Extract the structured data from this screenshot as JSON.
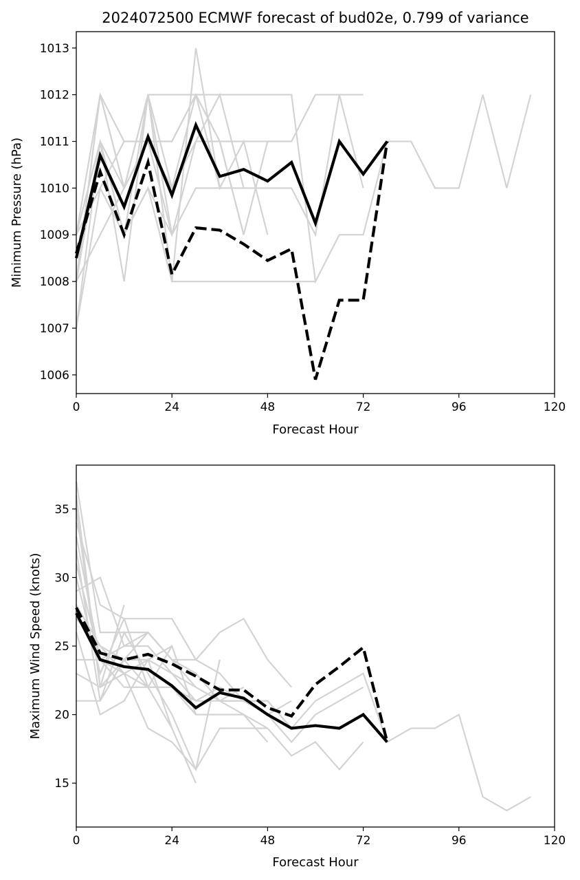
{
  "chart_data": [
    {
      "type": "line",
      "title": "2024072500 ECMWF forecast of bud02e, 0.799 of variance",
      "xlabel": "Forecast Hour",
      "ylabel": "Minimum Pressure (hPa)",
      "xlim": [
        0,
        120
      ],
      "ylim": [
        1005.6,
        1013.35
      ],
      "xticks": [
        0,
        24,
        48,
        72,
        96,
        120
      ],
      "yticks": [
        1006,
        1007,
        1008,
        1009,
        1010,
        1011,
        1012,
        1013
      ],
      "grid": false,
      "colors": {
        "ensemble": "#d3d3d3",
        "main": "#000000"
      },
      "ensemble": [
        {
          "x": [
            0,
            6,
            12,
            18,
            24
          ],
          "y": [
            1008,
            1012,
            1010,
            1012,
            1009
          ]
        },
        {
          "x": [
            0,
            6,
            12,
            18,
            24,
            30,
            36
          ],
          "y": [
            1009,
            1011,
            1008,
            1012,
            1008,
            1013,
            1010
          ]
        },
        {
          "x": [
            0,
            6,
            12,
            18,
            24,
            30,
            36,
            42,
            48,
            54
          ],
          "y": [
            1007,
            1010,
            1011,
            1011,
            1011,
            1012,
            1011,
            1011,
            1011,
            1011
          ]
        },
        {
          "x": [
            0,
            6,
            12,
            18,
            24,
            30,
            36,
            42,
            48
          ],
          "y": [
            1008,
            1011,
            1009,
            1012,
            1010,
            1012,
            1010,
            1011,
            1009
          ]
        },
        {
          "x": [
            0,
            6,
            12,
            18,
            24,
            30,
            36,
            42
          ],
          "y": [
            1009,
            1012,
            1011,
            1011,
            1010,
            1011,
            1012,
            1010
          ]
        },
        {
          "x": [
            0,
            6,
            12,
            18,
            24,
            30,
            36,
            42,
            48,
            54,
            60
          ],
          "y": [
            1009,
            1010,
            1009,
            1010,
            1008,
            1008,
            1008,
            1008,
            1008,
            1008,
            1008
          ]
        },
        {
          "x": [
            0,
            6,
            12,
            18,
            24,
            30,
            36,
            42,
            48,
            54,
            60,
            66,
            72
          ],
          "y": [
            1008,
            1009,
            1010,
            1011,
            1009,
            1010,
            1010,
            1010,
            1010,
            1010,
            1009,
            1012,
            1010
          ]
        },
        {
          "x": [
            0,
            6,
            12,
            18,
            24,
            30,
            36,
            42
          ],
          "y": [
            1007,
            1011,
            1009,
            1010,
            1009,
            1011,
            1011,
            1009
          ]
        },
        {
          "x": [
            0,
            6,
            12,
            18,
            24,
            30,
            36,
            42,
            48,
            54,
            60,
            66,
            72,
            78,
            84,
            90,
            96,
            102,
            108,
            114
          ],
          "y": [
            1008,
            1012,
            1010,
            1012,
            1012,
            1012,
            1012,
            1012,
            1012,
            1012,
            1008,
            1009,
            1009,
            1011,
            1011,
            1010,
            1010,
            1012,
            1010,
            1012
          ]
        },
        {
          "x": [
            0,
            6,
            12,
            18,
            24,
            30,
            36,
            42,
            48,
            54,
            60,
            66,
            72
          ],
          "y": [
            1008,
            1011,
            1010,
            1011,
            1011,
            1012,
            1011,
            1009,
            1011,
            1011,
            1012,
            1012,
            1012
          ]
        }
      ],
      "series": [
        {
          "style": "solid",
          "x": [
            0,
            6,
            12,
            18,
            24,
            30,
            36,
            42,
            48,
            54,
            60,
            66,
            72,
            78
          ],
          "y": [
            1008.5,
            1010.7,
            1009.6,
            1011.1,
            1009.85,
            1011.35,
            1010.25,
            1010.4,
            1010.15,
            1010.55,
            1009.25,
            1011.0,
            1010.3,
            1011.0
          ]
        },
        {
          "style": "dashed",
          "x": [
            0,
            6,
            12,
            18,
            24,
            30,
            36,
            42,
            48,
            54,
            60,
            66,
            72,
            78
          ],
          "y": [
            1008.6,
            1010.35,
            1009.0,
            1010.55,
            1008.15,
            1009.15,
            1009.1,
            1008.8,
            1008.45,
            1008.7,
            1005.9,
            1007.6,
            1007.6,
            1011.0
          ]
        }
      ]
    },
    {
      "type": "line",
      "title": "",
      "xlabel": "Forecast Hour",
      "ylabel": "Maximum Wind Speed (knots)",
      "xlim": [
        0,
        120
      ],
      "ylim": [
        11.8,
        38.2
      ],
      "xticks": [
        0,
        24,
        48,
        72,
        96,
        120
      ],
      "yticks": [
        15,
        20,
        25,
        30,
        35
      ],
      "grid": false,
      "colors": {
        "ensemble": "#d3d3d3",
        "main": "#000000"
      },
      "ensemble": [
        {
          "x": [
            0,
            6,
            12,
            18,
            24,
            30,
            36,
            42,
            48,
            54
          ],
          "y": [
            37,
            26,
            26,
            26,
            24,
            24,
            26,
            27,
            24,
            22
          ]
        },
        {
          "x": [
            0,
            6,
            12,
            18,
            24,
            30,
            36,
            42,
            48,
            54,
            60,
            66,
            72,
            78,
            84,
            90,
            96,
            102,
            108,
            114
          ],
          "y": [
            33,
            24,
            22,
            22,
            22,
            21,
            21,
            21,
            21,
            19,
            21,
            22,
            23,
            18,
            19,
            19,
            20,
            14,
            13,
            14
          ]
        },
        {
          "x": [
            0,
            6,
            12,
            18,
            24,
            30,
            36,
            42,
            48,
            54,
            60,
            66,
            72
          ],
          "y": [
            28,
            25,
            24,
            24,
            23,
            22,
            21,
            20,
            19,
            17,
            18,
            16,
            18
          ]
        },
        {
          "x": [
            0,
            6,
            12,
            18,
            24,
            30
          ],
          "y": [
            35,
            22,
            23,
            22,
            19,
            15
          ]
        },
        {
          "x": [
            0,
            6,
            12,
            18,
            24,
            30,
            36,
            42,
            48,
            54
          ],
          "y": [
            31,
            24,
            25,
            25,
            23,
            21,
            22,
            21,
            21,
            19
          ]
        },
        {
          "x": [
            0,
            6,
            12,
            18,
            24,
            30,
            36,
            42
          ],
          "y": [
            29,
            30,
            25,
            26,
            24,
            22,
            21,
            22
          ]
        },
        {
          "x": [
            0,
            6,
            12,
            18,
            24,
            30,
            36
          ],
          "y": [
            32,
            21,
            26,
            23,
            20,
            16,
            24
          ]
        },
        {
          "x": [
            0,
            6,
            12,
            18,
            24
          ],
          "y": [
            26,
            20,
            21,
            24,
            19
          ]
        },
        {
          "x": [
            0,
            6,
            12,
            18,
            24,
            30,
            36,
            42,
            48,
            54,
            60,
            66,
            72
          ],
          "y": [
            30,
            23,
            27,
            27,
            27,
            24,
            23,
            21,
            20,
            18,
            20,
            21,
            22
          ]
        },
        {
          "x": [
            0,
            6,
            12,
            18,
            24,
            30,
            36,
            42,
            48
          ],
          "y": [
            34,
            28,
            27,
            22,
            22,
            20,
            20,
            20,
            18
          ]
        },
        {
          "x": [
            0,
            6,
            12,
            18,
            24,
            30,
            36,
            42,
            48,
            54
          ],
          "y": [
            23,
            22,
            24,
            26,
            24,
            23,
            21,
            21,
            20,
            21
          ]
        },
        {
          "x": [
            0,
            6,
            12,
            18,
            24,
            30,
            36,
            42,
            48
          ],
          "y": [
            24,
            24,
            23,
            19,
            18,
            16,
            19,
            19,
            19
          ]
        },
        {
          "x": [
            0,
            6,
            12
          ],
          "y": [
            36,
            22,
            28
          ]
        },
        {
          "x": [
            0,
            6,
            12,
            18,
            24,
            30
          ],
          "y": [
            21,
            21,
            24,
            22,
            25,
            20
          ]
        },
        {
          "x": [
            0,
            6,
            12,
            18,
            24
          ],
          "y": [
            27,
            25,
            23,
            24,
            25
          ]
        }
      ],
      "series": [
        {
          "style": "solid",
          "x": [
            0,
            6,
            12,
            18,
            24,
            30,
            36,
            42,
            48,
            54,
            60,
            66,
            72,
            78
          ],
          "y": [
            27.4,
            24.0,
            23.5,
            23.3,
            22.1,
            20.5,
            21.6,
            21.2,
            20.0,
            19.0,
            19.2,
            19.0,
            20.0,
            18.0
          ]
        },
        {
          "style": "dashed",
          "x": [
            0,
            6,
            12,
            18,
            24,
            30,
            36,
            42,
            48,
            54,
            60,
            66,
            72,
            78
          ],
          "y": [
            27.8,
            24.5,
            24.0,
            24.4,
            23.7,
            22.8,
            21.8,
            21.8,
            20.5,
            19.9,
            22.2,
            23.5,
            24.9,
            18.0
          ]
        }
      ]
    }
  ]
}
